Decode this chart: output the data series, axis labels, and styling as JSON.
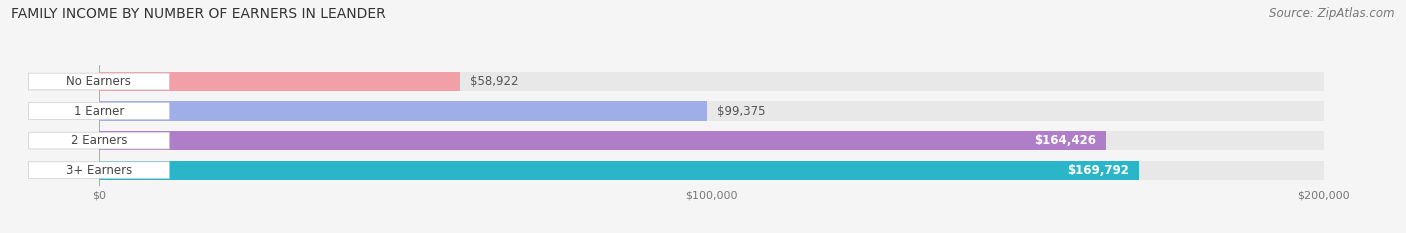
{
  "title": "FAMILY INCOME BY NUMBER OF EARNERS IN LEANDER",
  "source": "Source: ZipAtlas.com",
  "categories": [
    "No Earners",
    "1 Earner",
    "2 Earners",
    "3+ Earners"
  ],
  "values": [
    58922,
    99375,
    164426,
    169792
  ],
  "max_value": 200000,
  "bar_colors": [
    "#f2a0a8",
    "#a0aee8",
    "#b07dc8",
    "#2bb5c8"
  ],
  "bar_bg_color": "#e8e8e8",
  "label_colors": [
    "#555555",
    "#555555",
    "#ffffff",
    "#ffffff"
  ],
  "value_labels": [
    "$58,922",
    "$99,375",
    "$164,426",
    "$169,792"
  ],
  "x_ticks": [
    0,
    100000,
    200000
  ],
  "x_tick_labels": [
    "$0",
    "$100,000",
    "$200,000"
  ],
  "background_color": "#f5f5f5",
  "title_fontsize": 10,
  "source_fontsize": 8.5,
  "bar_label_fontsize": 8.5,
  "value_fontsize": 8.5,
  "tick_fontsize": 8
}
